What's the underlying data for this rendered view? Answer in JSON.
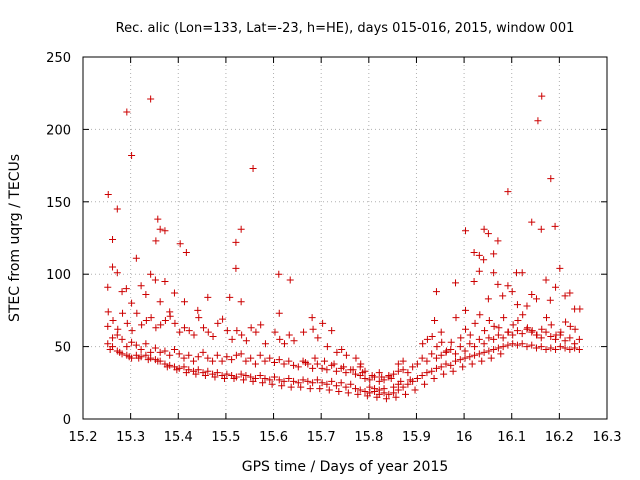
{
  "chart_data": {
    "type": "scatter",
    "title": "Rec. alic (Lon=133, Lat=-23, h=HE), days 015-016, 2015, window 001",
    "xlabel": "GPS time / Days of year 2015",
    "ylabel": "STEC from uqrg / TECUs",
    "xlim": [
      15.2,
      16.3
    ],
    "ylim": [
      0,
      250
    ],
    "xticks": [
      15.2,
      15.3,
      15.4,
      15.5,
      15.6,
      15.7,
      15.8,
      15.9,
      16,
      16.1,
      16.2,
      16.3
    ],
    "xtick_labels": [
      "15.2",
      "15.3",
      "15.4",
      "15.5",
      "15.6",
      "15.7",
      "15.8",
      "15.9",
      "16",
      "16.1",
      "16.2",
      "16.3"
    ],
    "yticks": [
      0,
      50,
      100,
      150,
      200,
      250
    ],
    "ytick_labels": [
      "0",
      "50",
      "100",
      "150",
      "200",
      "250"
    ],
    "grid": true,
    "marker": "+",
    "color": "#cc0000",
    "points": [
      [
        15.253,
        155
      ],
      [
        15.262,
        124
      ],
      [
        15.272,
        145
      ],
      [
        15.292,
        212
      ],
      [
        15.302,
        182
      ],
      [
        15.342,
        221
      ],
      [
        15.357,
        138
      ],
      [
        15.353,
        123
      ],
      [
        15.362,
        131
      ],
      [
        15.372,
        130
      ],
      [
        15.404,
        121
      ],
      [
        15.417,
        115
      ],
      [
        15.521,
        122
      ],
      [
        15.532,
        131
      ],
      [
        15.521,
        104
      ],
      [
        15.557,
        173
      ],
      [
        15.611,
        100
      ],
      [
        15.635,
        96
      ],
      [
        15.942,
        88
      ],
      [
        15.982,
        94
      ],
      [
        16.003,
        130
      ],
      [
        16.021,
        115
      ],
      [
        16.032,
        113
      ],
      [
        16.042,
        131
      ],
      [
        16.051,
        128
      ],
      [
        16.062,
        114
      ],
      [
        16.071,
        123
      ],
      [
        16.092,
        157
      ],
      [
        16.11,
        101
      ],
      [
        16.142,
        136
      ],
      [
        16.155,
        206
      ],
      [
        16.163,
        223
      ],
      [
        16.182,
        166
      ],
      [
        16.191,
        133
      ],
      [
        16.201,
        104
      ],
      [
        15.252,
        91
      ],
      [
        15.262,
        105
      ],
      [
        15.272,
        101
      ],
      [
        15.282,
        88
      ],
      [
        15.291,
        90
      ],
      [
        15.302,
        80
      ],
      [
        15.312,
        111
      ],
      [
        15.322,
        92
      ],
      [
        15.332,
        86
      ],
      [
        15.342,
        100
      ],
      [
        15.352,
        96
      ],
      [
        15.362,
        81
      ],
      [
        15.372,
        95
      ],
      [
        15.382,
        74
      ],
      [
        15.392,
        87
      ],
      [
        15.413,
        81
      ],
      [
        15.441,
        75
      ],
      [
        15.462,
        84
      ],
      [
        15.508,
        84
      ],
      [
        15.532,
        81
      ],
      [
        15.612,
        73
      ],
      [
        15.681,
        70
      ],
      [
        15.703,
        66
      ],
      [
        15.722,
        61
      ],
      [
        15.938,
        68
      ],
      [
        15.952,
        60
      ],
      [
        16.003,
        75
      ],
      [
        16.021,
        95
      ],
      [
        16.032,
        102
      ],
      [
        16.041,
        110
      ],
      [
        16.051,
        83
      ],
      [
        16.062,
        101
      ],
      [
        16.071,
        93
      ],
      [
        16.081,
        85
      ],
      [
        16.092,
        92
      ],
      [
        16.101,
        88
      ],
      [
        16.112,
        79
      ],
      [
        16.122,
        101
      ],
      [
        16.132,
        78
      ],
      [
        16.142,
        86
      ],
      [
        16.152,
        83
      ],
      [
        16.162,
        131
      ],
      [
        16.172,
        96
      ],
      [
        16.181,
        82
      ],
      [
        16.192,
        91
      ],
      [
        16.212,
        85
      ],
      [
        16.222,
        87
      ],
      [
        16.232,
        76
      ],
      [
        15.253,
        74
      ],
      [
        15.263,
        68
      ],
      [
        15.273,
        62
      ],
      [
        15.283,
        73
      ],
      [
        15.293,
        66
      ],
      [
        15.303,
        61
      ],
      [
        15.313,
        73
      ],
      [
        15.323,
        65
      ],
      [
        15.333,
        68
      ],
      [
        15.343,
        70
      ],
      [
        15.353,
        63
      ],
      [
        15.363,
        65
      ],
      [
        15.373,
        68
      ],
      [
        15.383,
        71
      ],
      [
        15.393,
        66
      ],
      [
        15.403,
        60
      ],
      [
        15.413,
        63
      ],
      [
        15.423,
        61
      ],
      [
        15.433,
        58
      ],
      [
        15.443,
        70
      ],
      [
        15.453,
        63
      ],
      [
        15.463,
        60
      ],
      [
        15.473,
        57
      ],
      [
        15.483,
        66
      ],
      [
        15.493,
        69
      ],
      [
        15.503,
        61
      ],
      [
        15.513,
        55
      ],
      [
        15.523,
        61
      ],
      [
        15.533,
        58
      ],
      [
        15.543,
        54
      ],
      [
        15.553,
        63
      ],
      [
        15.563,
        60
      ],
      [
        15.573,
        65
      ],
      [
        15.583,
        52
      ],
      [
        15.603,
        60
      ],
      [
        15.613,
        55
      ],
      [
        15.623,
        52
      ],
      [
        15.633,
        58
      ],
      [
        15.643,
        54
      ],
      [
        15.663,
        60
      ],
      [
        15.683,
        62
      ],
      [
        15.693,
        56
      ],
      [
        15.713,
        50
      ],
      [
        15.733,
        46
      ],
      [
        15.743,
        48
      ],
      [
        15.753,
        44
      ],
      [
        15.773,
        42
      ],
      [
        15.783,
        38
      ],
      [
        15.913,
        52
      ],
      [
        15.923,
        55
      ],
      [
        15.933,
        57
      ],
      [
        15.943,
        50
      ],
      [
        15.953,
        53
      ],
      [
        15.963,
        47
      ],
      [
        15.973,
        53
      ],
      [
        15.983,
        70
      ],
      [
        15.993,
        56
      ],
      [
        16.003,
        62
      ],
      [
        16.013,
        58
      ],
      [
        16.023,
        66
      ],
      [
        16.033,
        72
      ],
      [
        16.043,
        61
      ],
      [
        16.053,
        68
      ],
      [
        16.063,
        64
      ],
      [
        16.073,
        63
      ],
      [
        16.083,
        70
      ],
      [
        16.093,
        60
      ],
      [
        16.103,
        65
      ],
      [
        16.113,
        68
      ],
      [
        16.123,
        72
      ],
      [
        16.133,
        63
      ],
      [
        16.143,
        61
      ],
      [
        16.153,
        58
      ],
      [
        16.163,
        62
      ],
      [
        16.173,
        70
      ],
      [
        16.183,
        65
      ],
      [
        16.193,
        58
      ],
      [
        16.203,
        60
      ],
      [
        16.213,
        67
      ],
      [
        16.223,
        64
      ],
      [
        16.233,
        62
      ],
      [
        16.243,
        76
      ],
      [
        15.252,
        64
      ],
      [
        15.262,
        56
      ],
      [
        15.272,
        58
      ],
      [
        15.282,
        55
      ],
      [
        15.292,
        50
      ],
      [
        15.302,
        53
      ],
      [
        15.312,
        51
      ],
      [
        15.322,
        48
      ],
      [
        15.332,
        52
      ],
      [
        15.342,
        46
      ],
      [
        15.352,
        49
      ],
      [
        15.362,
        46
      ],
      [
        15.372,
        47
      ],
      [
        15.382,
        44
      ],
      [
        15.392,
        48
      ],
      [
        15.402,
        45
      ],
      [
        15.412,
        42
      ],
      [
        15.422,
        44
      ],
      [
        15.432,
        40
      ],
      [
        15.442,
        43
      ],
      [
        15.452,
        46
      ],
      [
        15.462,
        42
      ],
      [
        15.472,
        40
      ],
      [
        15.482,
        44
      ],
      [
        15.492,
        40
      ],
      [
        15.502,
        43
      ],
      [
        15.512,
        41
      ],
      [
        15.522,
        44
      ],
      [
        15.532,
        45
      ],
      [
        15.542,
        40
      ],
      [
        15.552,
        42
      ],
      [
        15.562,
        38
      ],
      [
        15.572,
        44
      ],
      [
        15.582,
        40
      ],
      [
        15.592,
        42
      ],
      [
        15.602,
        39
      ],
      [
        15.612,
        41
      ],
      [
        15.622,
        38
      ],
      [
        15.632,
        40
      ],
      [
        15.642,
        37
      ],
      [
        15.652,
        36
      ],
      [
        15.662,
        40
      ],
      [
        15.672,
        38
      ],
      [
        15.682,
        35
      ],
      [
        15.692,
        38
      ],
      [
        15.702,
        35
      ],
      [
        15.712,
        34
      ],
      [
        15.722,
        37
      ],
      [
        15.732,
        33
      ],
      [
        15.742,
        35
      ],
      [
        15.752,
        32
      ],
      [
        15.762,
        34
      ],
      [
        15.772,
        31
      ],
      [
        15.782,
        30
      ],
      [
        15.792,
        28
      ],
      [
        15.802,
        27
      ],
      [
        15.812,
        29
      ],
      [
        15.822,
        26
      ],
      [
        15.832,
        27
      ],
      [
        15.842,
        29
      ],
      [
        15.852,
        31
      ],
      [
        15.862,
        33
      ],
      [
        15.872,
        34
      ],
      [
        15.882,
        32
      ],
      [
        15.892,
        36
      ],
      [
        15.902,
        38
      ],
      [
        15.912,
        42
      ],
      [
        15.922,
        40
      ],
      [
        15.932,
        45
      ],
      [
        15.942,
        42
      ],
      [
        15.952,
        44
      ],
      [
        15.962,
        46
      ],
      [
        15.972,
        48
      ],
      [
        15.982,
        45
      ],
      [
        15.992,
        50
      ],
      [
        16.002,
        47
      ],
      [
        16.012,
        52
      ],
      [
        16.022,
        50
      ],
      [
        16.032,
        55
      ],
      [
        16.042,
        52
      ],
      [
        16.052,
        56
      ],
      [
        16.062,
        55
      ],
      [
        16.072,
        58
      ],
      [
        16.082,
        56
      ],
      [
        16.092,
        60
      ],
      [
        16.102,
        58
      ],
      [
        16.112,
        61
      ],
      [
        16.122,
        59
      ],
      [
        16.132,
        62
      ],
      [
        16.142,
        60
      ],
      [
        16.152,
        58
      ],
      [
        16.162,
        56
      ],
      [
        16.172,
        60
      ],
      [
        16.182,
        57
      ],
      [
        16.192,
        55
      ],
      [
        16.202,
        58
      ],
      [
        16.212,
        54
      ],
      [
        16.222,
        56
      ],
      [
        16.232,
        52
      ],
      [
        16.242,
        55
      ],
      [
        15.252,
        52
      ],
      [
        15.262,
        50
      ],
      [
        15.272,
        47
      ],
      [
        15.282,
        45
      ],
      [
        15.292,
        44
      ],
      [
        15.302,
        42
      ],
      [
        15.312,
        44
      ],
      [
        15.322,
        43
      ],
      [
        15.332,
        44
      ],
      [
        15.342,
        42
      ],
      [
        15.352,
        41
      ],
      [
        15.362,
        40
      ],
      [
        15.372,
        38
      ],
      [
        15.382,
        37
      ],
      [
        15.392,
        36
      ],
      [
        15.402,
        35
      ],
      [
        15.412,
        36
      ],
      [
        15.422,
        34
      ],
      [
        15.432,
        33
      ],
      [
        15.442,
        34
      ],
      [
        15.452,
        32
      ],
      [
        15.462,
        33
      ],
      [
        15.472,
        31
      ],
      [
        15.482,
        32
      ],
      [
        15.492,
        30
      ],
      [
        15.502,
        31
      ],
      [
        15.512,
        30
      ],
      [
        15.522,
        29
      ],
      [
        15.532,
        31
      ],
      [
        15.542,
        30
      ],
      [
        15.552,
        29
      ],
      [
        15.562,
        28
      ],
      [
        15.572,
        30
      ],
      [
        15.582,
        28
      ],
      [
        15.592,
        27
      ],
      [
        15.602,
        29
      ],
      [
        15.612,
        27
      ],
      [
        15.622,
        26
      ],
      [
        15.632,
        28
      ],
      [
        15.642,
        26
      ],
      [
        15.652,
        25
      ],
      [
        15.662,
        27
      ],
      [
        15.672,
        26
      ],
      [
        15.682,
        25
      ],
      [
        15.692,
        27
      ],
      [
        15.702,
        25
      ],
      [
        15.712,
        24
      ],
      [
        15.722,
        26
      ],
      [
        15.732,
        23
      ],
      [
        15.742,
        25
      ],
      [
        15.752,
        22
      ],
      [
        15.762,
        24
      ],
      [
        15.772,
        21
      ],
      [
        15.782,
        20
      ],
      [
        15.792,
        19
      ],
      [
        15.802,
        18
      ],
      [
        15.812,
        19
      ],
      [
        15.822,
        17
      ],
      [
        15.832,
        18
      ],
      [
        15.842,
        17
      ],
      [
        15.852,
        18
      ],
      [
        15.862,
        20
      ],
      [
        15.872,
        22
      ],
      [
        15.882,
        24
      ],
      [
        15.892,
        26
      ],
      [
        15.902,
        28
      ],
      [
        15.912,
        30
      ],
      [
        15.922,
        32
      ],
      [
        15.932,
        33
      ],
      [
        15.942,
        35
      ],
      [
        15.952,
        36
      ],
      [
        15.962,
        38
      ],
      [
        15.972,
        37
      ],
      [
        15.982,
        40
      ],
      [
        15.992,
        41
      ],
      [
        16.002,
        42
      ],
      [
        16.012,
        43
      ],
      [
        16.022,
        44
      ],
      [
        16.032,
        45
      ],
      [
        16.042,
        46
      ],
      [
        16.052,
        47
      ],
      [
        16.062,
        48
      ],
      [
        16.072,
        49
      ],
      [
        16.082,
        50
      ],
      [
        16.092,
        51
      ],
      [
        16.102,
        52
      ],
      [
        16.112,
        51
      ],
      [
        16.122,
        52
      ],
      [
        16.132,
        50
      ],
      [
        16.142,
        51
      ],
      [
        16.152,
        49
      ],
      [
        16.162,
        50
      ],
      [
        16.172,
        48
      ],
      [
        16.182,
        49
      ],
      [
        16.192,
        48
      ],
      [
        16.202,
        50
      ],
      [
        16.212,
        49
      ],
      [
        16.222,
        48
      ],
      [
        16.232,
        49
      ],
      [
        16.242,
        48
      ],
      [
        15.257,
        48
      ],
      [
        15.277,
        46
      ],
      [
        15.297,
        43
      ],
      [
        15.317,
        42
      ],
      [
        15.337,
        41
      ],
      [
        15.357,
        40
      ],
      [
        15.377,
        36
      ],
      [
        15.397,
        34
      ],
      [
        15.417,
        32
      ],
      [
        15.437,
        31
      ],
      [
        15.457,
        30
      ],
      [
        15.477,
        29
      ],
      [
        15.497,
        28
      ],
      [
        15.517,
        28
      ],
      [
        15.537,
        27
      ],
      [
        15.557,
        26
      ],
      [
        15.577,
        25
      ],
      [
        15.597,
        24
      ],
      [
        15.617,
        23
      ],
      [
        15.637,
        22
      ],
      [
        15.657,
        22
      ],
      [
        15.677,
        21
      ],
      [
        15.697,
        21
      ],
      [
        15.717,
        20
      ],
      [
        15.737,
        19
      ],
      [
        15.757,
        18
      ],
      [
        15.777,
        17
      ],
      [
        15.797,
        16
      ],
      [
        15.817,
        15
      ],
      [
        15.837,
        14
      ],
      [
        15.857,
        15
      ],
      [
        15.877,
        17
      ],
      [
        15.897,
        20
      ],
      [
        15.917,
        24
      ],
      [
        15.937,
        28
      ],
      [
        15.957,
        31
      ],
      [
        15.977,
        33
      ],
      [
        15.997,
        36
      ],
      [
        16.017,
        38
      ],
      [
        16.037,
        40
      ],
      [
        16.057,
        42
      ],
      [
        16.077,
        45
      ],
      [
        15.667,
        39
      ],
      [
        15.687,
        42
      ],
      [
        15.707,
        40
      ],
      [
        15.727,
        38
      ],
      [
        15.747,
        36
      ],
      [
        15.767,
        34
      ],
      [
        15.787,
        32
      ],
      [
        15.807,
        30
      ],
      [
        15.827,
        29
      ],
      [
        15.847,
        28
      ],
      [
        15.867,
        26
      ],
      [
        15.887,
        27
      ],
      [
        15.782,
        36
      ],
      [
        15.792,
        33
      ],
      [
        15.822,
        32
      ],
      [
        15.842,
        30
      ],
      [
        15.862,
        38
      ],
      [
        15.872,
        40
      ],
      [
        15.802,
        22
      ],
      [
        15.812,
        21
      ],
      [
        15.822,
        20
      ],
      [
        15.832,
        21
      ],
      [
        15.852,
        22
      ],
      [
        15.862,
        24
      ]
    ]
  }
}
